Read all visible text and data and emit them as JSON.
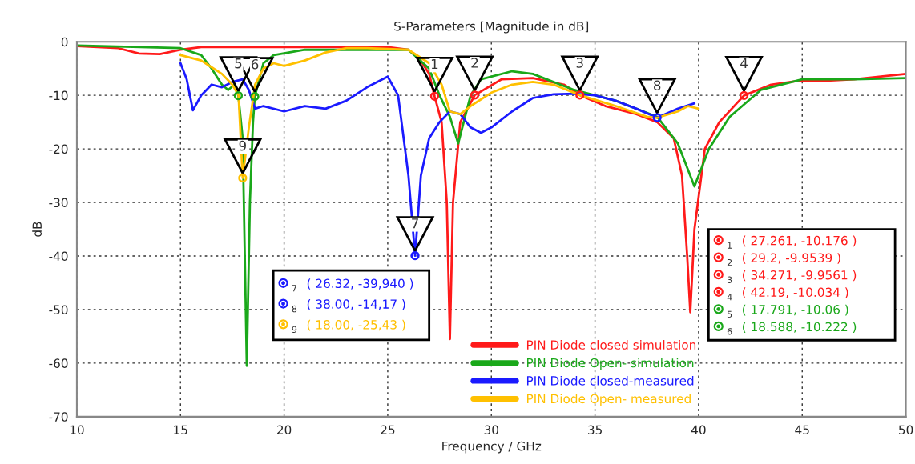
{
  "chart_data": {
    "type": "line",
    "title": "S-Parameters [Magnitude in dB]",
    "xlabel": "Frequency / GHz",
    "ylabel": "dB",
    "xlim": [
      10,
      50
    ],
    "xticks": [
      10,
      15,
      20,
      25,
      30,
      35,
      40,
      45,
      50
    ],
    "ylim": [
      -70,
      0
    ],
    "yticks": [
      -70,
      -60,
      -50,
      -40,
      -30,
      -20,
      -10,
      0
    ],
    "grid": true,
    "legend": "bottom",
    "line_style": "solid",
    "series": [
      {
        "name": "PIN Diode closed simulation",
        "color": "#ff1a1a",
        "x": [
          10,
          12,
          13,
          14,
          15,
          16,
          18,
          20,
          22,
          25,
          26,
          26.5,
          27,
          27.261,
          27.6,
          27.85,
          28.0,
          28.15,
          28.5,
          29.2,
          30.5,
          32,
          33.5,
          34.271,
          35.5,
          37,
          38,
          38.8,
          39.2,
          39.45,
          39.6,
          39.8,
          40.3,
          41,
          42.19,
          43.5,
          45,
          46,
          47.5,
          50
        ],
        "values": [
          -0.8,
          -1.2,
          -2.2,
          -2.3,
          -1.5,
          -1,
          -1,
          -1,
          -1,
          -1,
          -1.5,
          -3,
          -6,
          -10.176,
          -15,
          -30,
          -55.5,
          -30,
          -15,
          -9.9539,
          -7,
          -6.8,
          -8,
          -9.9561,
          -12,
          -13.5,
          -15,
          -18,
          -25,
          -40,
          -50.5,
          -35,
          -20,
          -15,
          -10.034,
          -8,
          -7.2,
          -7.3,
          -7,
          -6
        ]
      },
      {
        "name": "PIN Diode Open- simulation",
        "color": "#1aa81a",
        "x": [
          10,
          15,
          16,
          16.5,
          17,
          17.3,
          17.6,
          17.791,
          18.0,
          18.2,
          18.35,
          18.5,
          18.588,
          19,
          19.5,
          21,
          24,
          26,
          27,
          27.5,
          28,
          28.4,
          29,
          29.5,
          31,
          32,
          34,
          36,
          38,
          39,
          39.8,
          40.5,
          41.5,
          43,
          45,
          47.5,
          50
        ],
        "values": [
          -0.7,
          -1.2,
          -2.5,
          -5,
          -8,
          -9,
          -8,
          -10.06,
          -18,
          -60.5,
          -30,
          -15,
          -10.222,
          -4,
          -2.5,
          -1.5,
          -1.5,
          -1.5,
          -5,
          -10,
          -14,
          -19,
          -10,
          -7,
          -5.5,
          -6,
          -9,
          -11,
          -14,
          -19,
          -27,
          -20,
          -14,
          -9,
          -7,
          -7,
          -6.8
        ]
      },
      {
        "name": "PIN Diode closed-measured",
        "color": "#1a1aff",
        "x": [
          15,
          15.3,
          15.6,
          16,
          16.5,
          17,
          17.5,
          18,
          18.3,
          18.6,
          19,
          20,
          21,
          22,
          23,
          24,
          25,
          25.5,
          26,
          26.32,
          26.6,
          27,
          27.5,
          28,
          28.5,
          29,
          29.5,
          30,
          31,
          32,
          33,
          34,
          35,
          36,
          37,
          38,
          39,
          39.8
        ],
        "values": [
          -4,
          -7,
          -12.8,
          -10,
          -8,
          -8.5,
          -7.5,
          -7,
          -9,
          -12.5,
          -12,
          -13,
          -12,
          -12.5,
          -11,
          -8.5,
          -6.5,
          -10,
          -25,
          -39.94,
          -25,
          -18,
          -15,
          -13,
          -13.5,
          -16,
          -17,
          -16,
          -13,
          -10.5,
          -9.8,
          -9.7,
          -10,
          -11,
          -12.5,
          -14.17,
          -12.5,
          -11.5
        ]
      },
      {
        "name": "PIN Diode Open- measured",
        "color": "#ffc000",
        "x": [
          15,
          16,
          17,
          17.5,
          17.8,
          18.0,
          18.3,
          18.6,
          19,
          19.5,
          20,
          21,
          22,
          23,
          24,
          26,
          27,
          27.6,
          28,
          28.5,
          29,
          30,
          31,
          32,
          33,
          34.3,
          36,
          37.5,
          38,
          39,
          39.5,
          40
        ],
        "values": [
          -2.5,
          -3.5,
          -6,
          -8,
          -10,
          -25.43,
          -16,
          -8,
          -5,
          -4,
          -4.5,
          -3.5,
          -2,
          -1.2,
          -1.2,
          -1.5,
          -4,
          -8,
          -13,
          -13.5,
          -12,
          -9.5,
          -8,
          -7.5,
          -8,
          -10,
          -12,
          -14,
          -14.2,
          -13,
          -12,
          -12.5
        ]
      },
      {
        "type": "scatter",
        "marker": "circle",
        "x": [
          27.261,
          29.2,
          34.271,
          42.19,
          17.791,
          18.588,
          26.32,
          38.0,
          18.0
        ],
        "values": [
          -10.176,
          -9.9539,
          -9.9561,
          -10.034,
          -10.06,
          -10.222,
          -39.94,
          -14.17,
          -25.43
        ],
        "colors": [
          "#ff1a1a",
          "#ff1a1a",
          "#ff1a1a",
          "#ff1a1a",
          "#1aa81a",
          "#1aa81a",
          "#1a1aff",
          "#1a1aff",
          "#ffc000"
        ]
      }
    ],
    "annotations": [
      {
        "text": "1",
        "x": 27.261,
        "y": -10.176
      },
      {
        "text": "2",
        "x": 29.2,
        "y": -9.9539
      },
      {
        "text": "3",
        "x": 34.271,
        "y": -9.9561
      },
      {
        "text": "4",
        "x": 42.19,
        "y": -10.034
      },
      {
        "text": "5",
        "x": 17.791,
        "y": -10.06
      },
      {
        "text": "6",
        "x": 18.588,
        "y": -10.222
      },
      {
        "text": "7",
        "x": 26.32,
        "y": -39.94
      },
      {
        "text": "8",
        "x": 38.0,
        "y": -14.17
      },
      {
        "text": "9",
        "x": 18.0,
        "y": -25.43
      },
      "( 27.261, -10.176 )",
      "( 29.2, -9.9539 )",
      "( 34.271, -9.9561 )",
      "( 42.19, -10.034 )",
      "( 17.791, -10.06 )",
      "( 18.588, -10.222 )",
      "( 26.32, -39,940 )",
      "( 38.00, -14,17 )",
      "( 18.00, -25,43 )"
    ]
  }
}
